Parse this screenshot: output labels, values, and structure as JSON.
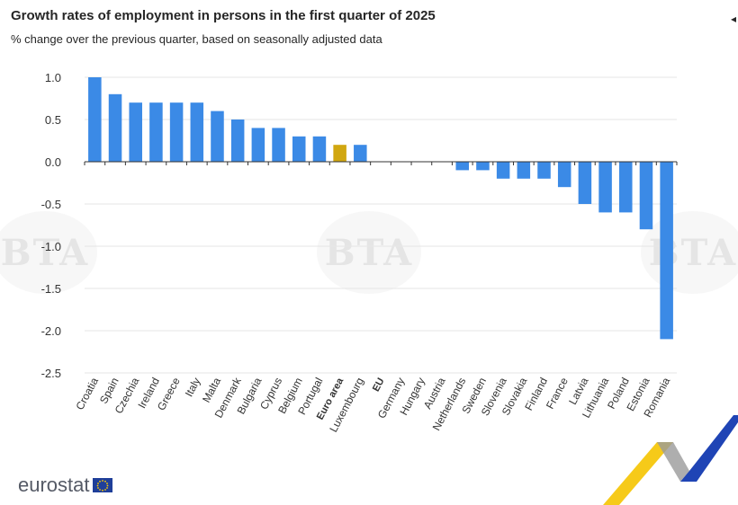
{
  "header": {
    "title": "Growth rates of employment in persons in the first quarter of 2025",
    "subtitle": "% change over the previous quarter, based on seasonally adjusted data"
  },
  "logo": {
    "text": "eurostat"
  },
  "watermark": {
    "text": "BTA"
  },
  "icons": {
    "share": "share-icon",
    "flag": "eu-flag-icon"
  },
  "colors": {
    "bar": "#3b8ae6",
    "highlight": "#d1a710",
    "grid": "#e6e6e6",
    "axis": "#333333",
    "flag": "#1f3f99",
    "star": "#ffcc00"
  },
  "chart_data": {
    "type": "bar",
    "title": "Growth rates of employment in persons in the first quarter of 2025",
    "subtitle": "% change over the previous quarter, based on seasonally adjusted data",
    "categories": [
      "Croatia",
      "Spain",
      "Czechia",
      "Ireland",
      "Greece",
      "Italy",
      "Malta",
      "Denmark",
      "Bulgaria",
      "Cyprus",
      "Belgium",
      "Portugal",
      "Euro area",
      "Luxembourg",
      "EU",
      "Germany",
      "Hungary",
      "Austria",
      "Netherlands",
      "Sweden",
      "Slovenia",
      "Slovakia",
      "Finland",
      "France",
      "Latvia",
      "Lithuania",
      "Poland",
      "Estonia",
      "Romania"
    ],
    "values": [
      1.0,
      0.8,
      0.7,
      0.7,
      0.7,
      0.7,
      0.6,
      0.5,
      0.4,
      0.4,
      0.3,
      0.3,
      0.2,
      0.2,
      0.0,
      0.0,
      0.0,
      0.0,
      -0.1,
      -0.1,
      -0.2,
      -0.2,
      -0.2,
      -0.3,
      -0.5,
      -0.6,
      -0.6,
      -0.8,
      -2.1
    ],
    "highlighted": [
      "Euro area"
    ],
    "bold_categories": [
      "Euro area",
      "EU"
    ],
    "yticks": [
      "1.0",
      "0.5",
      "0.0",
      "-0.5",
      "-1.0",
      "-1.5",
      "-2.0",
      "-2.5"
    ],
    "ylim": [
      -2.5,
      1.0
    ],
    "xlabel": "",
    "ylabel": "",
    "grid": true,
    "legend": "none"
  }
}
